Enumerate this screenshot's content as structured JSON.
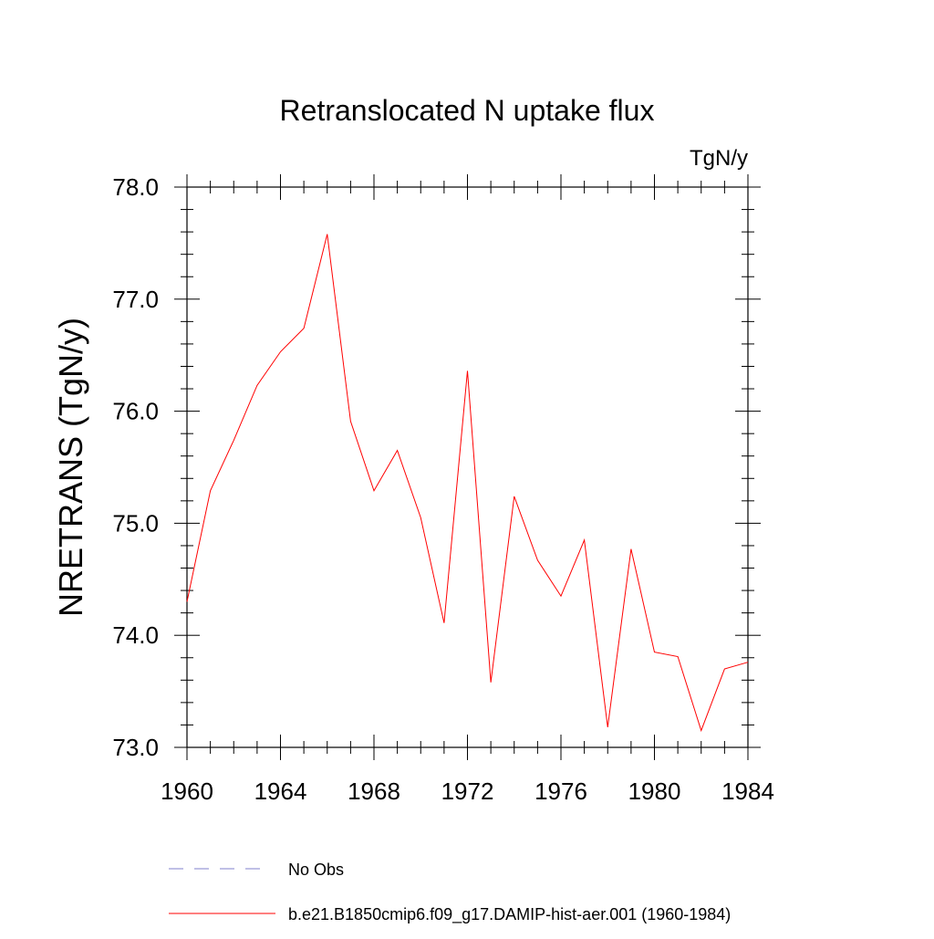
{
  "chart_data": {
    "type": "line",
    "title": "Retranslocated N uptake flux",
    "units_label": "TgN/y",
    "ylabel": "NRETRANS  (TgN/y)",
    "xlabel": "",
    "xlim": [
      1960,
      1984
    ],
    "ylim": [
      73.0,
      78.0
    ],
    "x_ticks": [
      1960,
      1964,
      1968,
      1972,
      1976,
      1980,
      1984
    ],
    "y_ticks": [
      "73.0",
      "74.0",
      "75.0",
      "76.0",
      "77.0",
      "78.0"
    ],
    "grid": false,
    "x": [
      1960,
      1961,
      1962,
      1963,
      1964,
      1965,
      1966,
      1967,
      1968,
      1969,
      1970,
      1971,
      1972,
      1973,
      1974,
      1975,
      1976,
      1977,
      1978,
      1979,
      1980,
      1981,
      1982,
      1983,
      1984
    ],
    "series": [
      {
        "name": "b.e21.B1850cmip6.f09_g17.DAMIP-hist-aer.001 (1960-1984)",
        "color": "#ff0000",
        "values": [
          74.3,
          75.29,
          75.74,
          76.23,
          76.53,
          76.74,
          77.58,
          75.91,
          75.29,
          75.65,
          75.05,
          74.11,
          76.36,
          73.58,
          75.24,
          74.67,
          74.35,
          74.85,
          73.18,
          74.77,
          73.85,
          73.81,
          73.15,
          73.7,
          73.76
        ]
      }
    ],
    "legend": {
      "placement": "bottom",
      "items": [
        {
          "label": "No Obs",
          "style": "dashed",
          "color": "#8080cc"
        },
        {
          "label": "b.e21.B1850cmip6.f09_g17.DAMIP-hist-aer.001 (1960-1984)",
          "style": "solid",
          "color": "#ff0000"
        }
      ]
    }
  }
}
